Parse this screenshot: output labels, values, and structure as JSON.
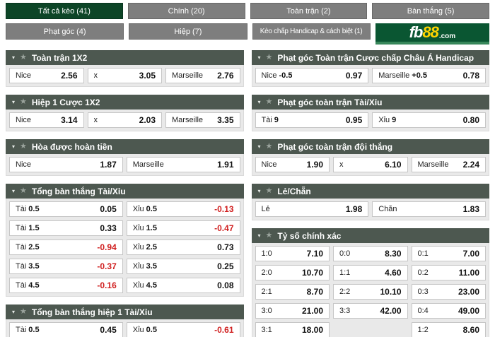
{
  "icons": {
    "caret": "▾",
    "star": "★"
  },
  "logo": {
    "fb": "fb",
    "eights": "88",
    "dotcom": ".com"
  },
  "colors": {
    "selected_tab_green": "#0d4527",
    "tab_gray": "#7e7e7e",
    "section_header": "#4d5850",
    "logo_green": "#0a5632",
    "logo_yellow": "#ffd400",
    "negative_red": "#d01f1f"
  },
  "tabs": {
    "row1": [
      {
        "name": "tab-all-odds",
        "label": "Tất cả kèo (41)",
        "selected": true
      },
      {
        "name": "tab-main",
        "label": "Chính (20)",
        "selected": false
      },
      {
        "name": "tab-full-match",
        "label": "Toàn trận (2)",
        "selected": false
      },
      {
        "name": "tab-goals",
        "label": "Bàn thắng (5)",
        "selected": false
      }
    ],
    "row2": [
      {
        "name": "tab-corners",
        "label": "Phạt góc (4)",
        "selected": false
      },
      {
        "name": "tab-halves",
        "label": "Hiệp (7)",
        "selected": false
      },
      {
        "name": "tab-handicap-margin",
        "label": "Kèo chấp Handicap & cách biệt (1)",
        "selected": false
      }
    ]
  },
  "columns": {
    "left": [
      {
        "name": "section-full-match-1x2",
        "title": "Toàn trận 1X2",
        "rows": [
          [
            {
              "label": "Nice",
              "strong": "",
              "value": "2.56"
            },
            {
              "label": "x",
              "strong": "",
              "value": "3.05"
            },
            {
              "label": "Marseille",
              "strong": "",
              "value": "2.76"
            }
          ]
        ]
      },
      {
        "name": "section-first-half-1x2",
        "title": "Hiệp 1 Cược 1X2",
        "rows": [
          [
            {
              "label": "Nice",
              "strong": "",
              "value": "3.14"
            },
            {
              "label": "x",
              "strong": "",
              "value": "2.03"
            },
            {
              "label": "Marseille",
              "strong": "",
              "value": "3.35"
            }
          ]
        ]
      },
      {
        "name": "section-draw-no-bet",
        "title": "Hòa được hoàn tiền",
        "rows": [
          [
            {
              "label": "Nice",
              "strong": "",
              "value": "1.87"
            },
            {
              "label": "Marseille",
              "strong": "",
              "value": "1.91"
            }
          ]
        ]
      },
      {
        "name": "section-total-goals-over-under",
        "title": "Tổng bàn thắng Tài/Xỉu",
        "rows": [
          [
            {
              "label": "Tài",
              "strong": "0.5",
              "value": "0.05"
            },
            {
              "label": "Xỉu",
              "strong": "0.5",
              "value": "-0.13",
              "negative": true
            }
          ],
          [
            {
              "label": "Tài",
              "strong": "1.5",
              "value": "0.33"
            },
            {
              "label": "Xỉu",
              "strong": "1.5",
              "value": "-0.47",
              "negative": true
            }
          ],
          [
            {
              "label": "Tài",
              "strong": "2.5",
              "value": "-0.94",
              "negative": true
            },
            {
              "label": "Xỉu",
              "strong": "2.5",
              "value": "0.73"
            }
          ],
          [
            {
              "label": "Tài",
              "strong": "3.5",
              "value": "-0.37",
              "negative": true
            },
            {
              "label": "Xỉu",
              "strong": "3.5",
              "value": "0.25"
            }
          ],
          [
            {
              "label": "Tài",
              "strong": "4.5",
              "value": "-0.16",
              "negative": true
            },
            {
              "label": "Xỉu",
              "strong": "4.5",
              "value": "0.08"
            }
          ]
        ]
      },
      {
        "name": "section-first-half-total-goals-over-under",
        "title": "Tổng bàn thắng hiệp 1 Tài/Xỉu",
        "rows": [
          [
            {
              "label": "Tài",
              "strong": "0.5",
              "value": "0.45"
            },
            {
              "label": "Xỉu",
              "strong": "0.5",
              "value": "-0.61",
              "negative": true
            }
          ]
        ]
      }
    ],
    "right": [
      {
        "name": "section-corners-asian-handicap",
        "title": "Phạt góc Toàn trận Cược chấp Châu Á Handicap",
        "rows": [
          [
            {
              "label": "Nice",
              "strong": "-0.5",
              "value": "0.97"
            },
            {
              "label": "Marseille",
              "strong": "+0.5",
              "value": "0.78"
            }
          ]
        ]
      },
      {
        "name": "section-corners-over-under",
        "title": "Phạt góc toàn trận Tài/Xỉu",
        "rows": [
          [
            {
              "label": "Tài",
              "strong": "9",
              "value": "0.95"
            },
            {
              "label": "Xỉu",
              "strong": "9",
              "value": "0.80"
            }
          ]
        ]
      },
      {
        "name": "section-corners-match-winner",
        "title": "Phạt góc toàn trận đội thắng",
        "rows": [
          [
            {
              "label": "Nice",
              "strong": "",
              "value": "1.90"
            },
            {
              "label": "x",
              "strong": "",
              "value": "6.10"
            },
            {
              "label": "Marseille",
              "strong": "",
              "value": "2.24"
            }
          ]
        ]
      },
      {
        "name": "section-odd-even",
        "title": "Lẻ/Chẵn",
        "rows": [
          [
            {
              "label": "Lẻ",
              "strong": "",
              "value": "1.98"
            },
            {
              "label": "Chẵn",
              "strong": "",
              "value": "1.83"
            }
          ]
        ]
      },
      {
        "name": "section-correct-score",
        "title": "Tỷ số chính xác",
        "rows": [
          [
            {
              "label": "1:0",
              "strong": "",
              "value": "7.10"
            },
            {
              "label": "0:0",
              "strong": "",
              "value": "8.30"
            },
            {
              "label": "0:1",
              "strong": "",
              "value": "7.00"
            }
          ],
          [
            {
              "label": "2:0",
              "strong": "",
              "value": "10.70"
            },
            {
              "label": "1:1",
              "strong": "",
              "value": "4.60"
            },
            {
              "label": "0:2",
              "strong": "",
              "value": "11.00"
            }
          ],
          [
            {
              "label": "2:1",
              "strong": "",
              "value": "8.70"
            },
            {
              "label": "2:2",
              "strong": "",
              "value": "10.10"
            },
            {
              "label": "0:3",
              "strong": "",
              "value": "23.00"
            }
          ],
          [
            {
              "label": "3:0",
              "strong": "",
              "value": "21.00"
            },
            {
              "label": "3:3",
              "strong": "",
              "value": "42.00"
            },
            {
              "label": "0:4",
              "strong": "",
              "value": "49.00"
            }
          ],
          [
            {
              "label": "3:1",
              "strong": "",
              "value": "18.00"
            },
            {
              "empty": true
            },
            {
              "label": "1:2",
              "strong": "",
              "value": "8.60"
            }
          ]
        ]
      }
    ]
  }
}
